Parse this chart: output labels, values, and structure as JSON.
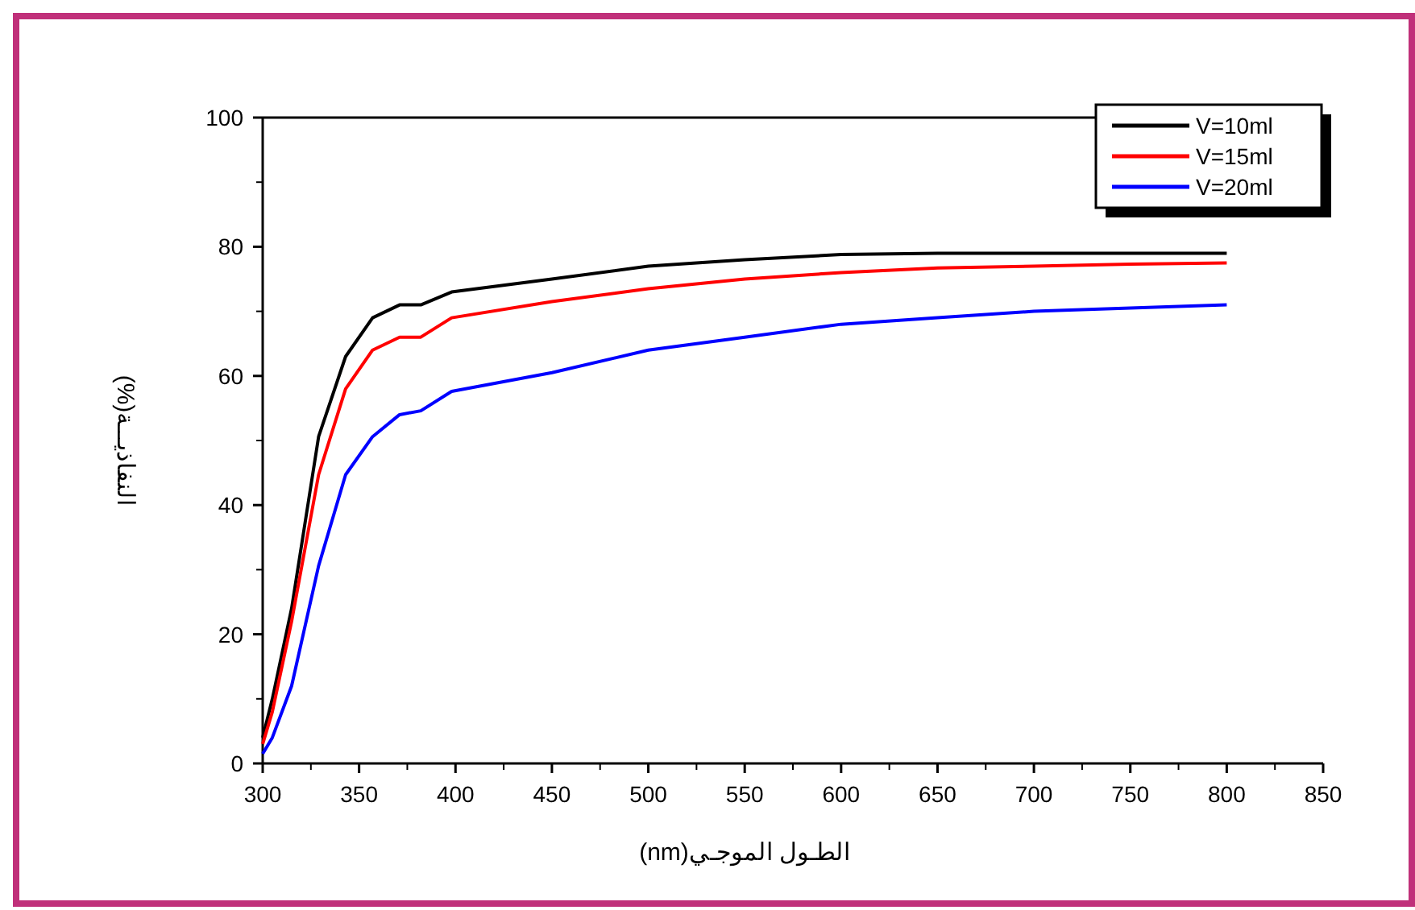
{
  "chart_data": {
    "type": "line",
    "xlabel": "الطـول الموجـي(nm)",
    "ylabel": "النفاذيـــة(%)",
    "xlim": [
      300,
      850
    ],
    "xticks": [
      300,
      350,
      400,
      450,
      500,
      550,
      600,
      650,
      700,
      750,
      800,
      850
    ],
    "ylim": [
      0,
      100
    ],
    "yticks": [
      0,
      20,
      40,
      60,
      80,
      100
    ],
    "grid": false,
    "legend": "top right",
    "line_style": "solid",
    "marker": "none",
    "series": [
      {
        "name": "V=10ml",
        "color": "#000000",
        "x": [
          300,
          305,
          315,
          329,
          343,
          357,
          371,
          382,
          398,
          450,
          500,
          550,
          600,
          650,
          700,
          750,
          800
        ],
        "values": [
          4,
          10,
          24,
          50.6,
          63,
          69,
          71,
          71,
          73,
          75,
          77,
          78,
          78.8,
          79,
          79,
          79,
          79
        ]
      },
      {
        "name": "V=15ml",
        "color": "#ff0000",
        "x": [
          300,
          305,
          315,
          329,
          343,
          357,
          371,
          382,
          398,
          450,
          500,
          550,
          600,
          650,
          700,
          750,
          800
        ],
        "values": [
          3,
          8,
          22,
          44.7,
          58,
          64,
          66,
          66,
          69,
          71.5,
          73.5,
          75,
          76,
          76.7,
          77,
          77.3,
          77.5
        ]
      },
      {
        "name": "V=20ml",
        "color": "#0000ff",
        "x": [
          300,
          305,
          315,
          329,
          343,
          357,
          371,
          382,
          398,
          450,
          500,
          550,
          600,
          650,
          700,
          750,
          800
        ],
        "values": [
          1.5,
          4,
          12,
          30.6,
          44.7,
          50.6,
          54,
          54.6,
          57.6,
          60.5,
          64,
          66,
          68,
          69,
          70,
          70.5,
          71
        ]
      }
    ]
  }
}
